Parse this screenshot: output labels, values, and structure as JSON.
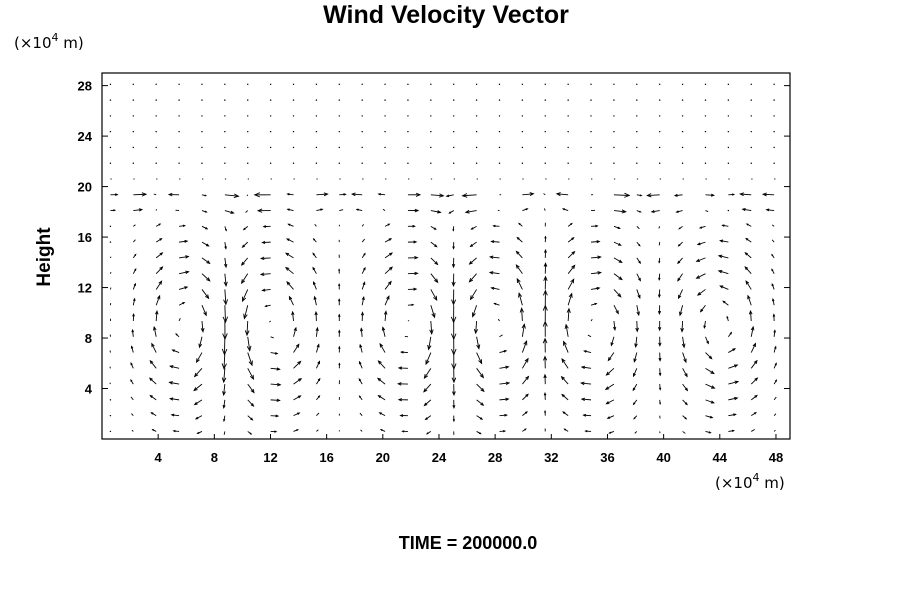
{
  "chart_data": {
    "type": "vector_field",
    "title": "Wind Velocity Vector",
    "ylabel": "Height",
    "x_unit_prefix": "(×10",
    "x_unit_exp": "4",
    "x_unit_suffix": " m)",
    "y_unit_prefix": "(×10",
    "y_unit_exp": "4",
    "y_unit_suffix": " m)",
    "xlim": [
      0,
      49
    ],
    "ylim": [
      0,
      29
    ],
    "x_ticks": [
      4,
      8,
      12,
      16,
      20,
      24,
      28,
      32,
      36,
      40,
      44,
      48
    ],
    "y_ticks": [
      4,
      8,
      12,
      16,
      20,
      24,
      28
    ],
    "grid": false,
    "footer": "TIME = 200000.0",
    "grid_spacing": {
      "dx": 1.63,
      "dy": 1.25
    },
    "vector_scale_note": "arrows drawn from a rotational wind field with cells centered near x≈6, 12, 22, 28, 35, 44"
  }
}
